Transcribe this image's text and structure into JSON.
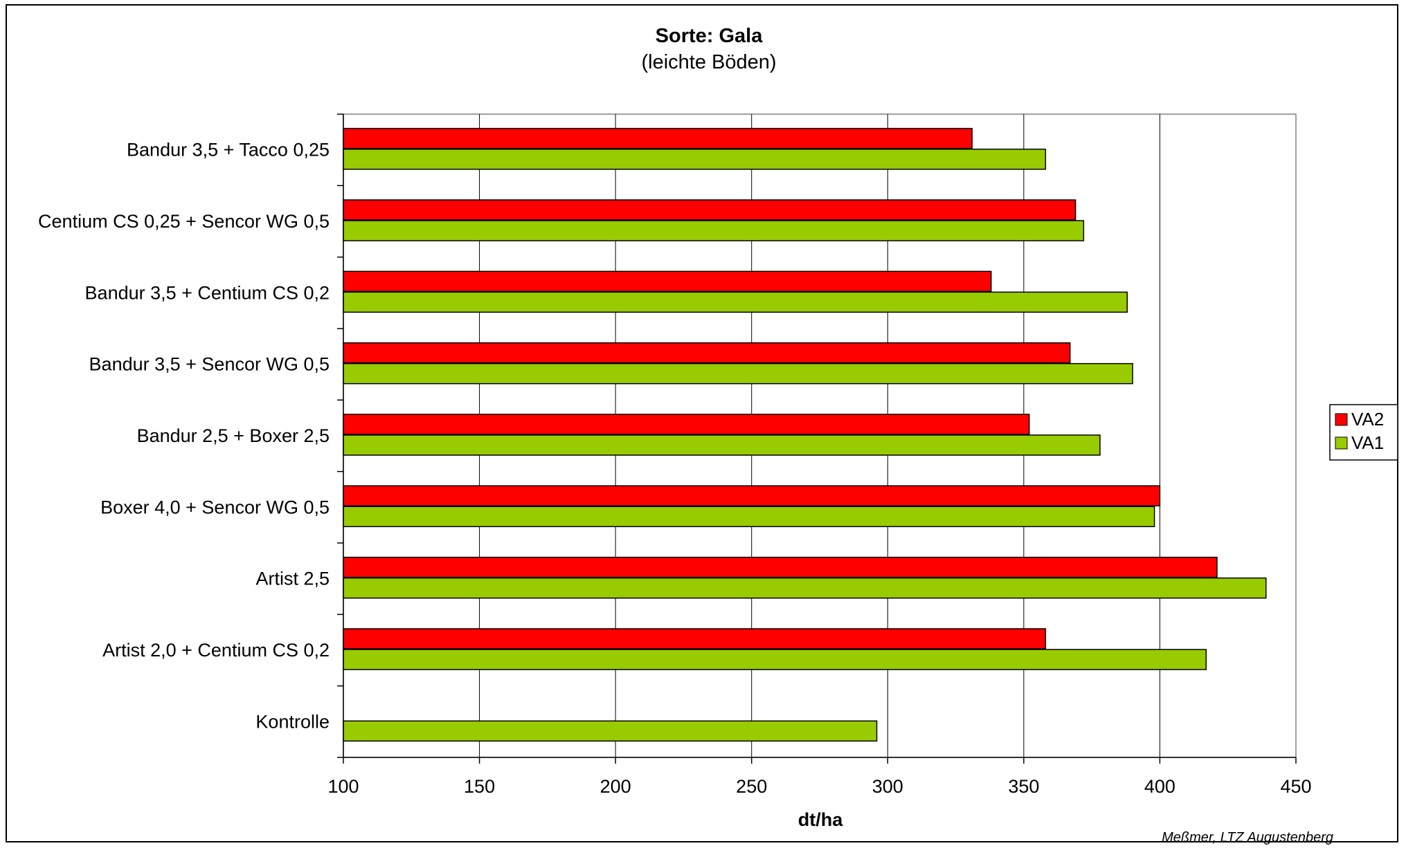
{
  "chart_data": {
    "type": "bar",
    "orientation": "horizontal",
    "title": "Sorte: Gala",
    "subtitle": "(leichte Böden)",
    "xlabel": "dt/ha",
    "ylabel": "",
    "xlim": [
      100,
      450
    ],
    "xticks": [
      100,
      150,
      200,
      250,
      300,
      350,
      400,
      450
    ],
    "grid": "vertical",
    "legend_position": "right",
    "categories": [
      "Bandur 3,5 + Tacco 0,25",
      "Centium CS 0,25 + Sencor WG 0,5",
      "Bandur 3,5 + Centium CS  0,2",
      "Bandur 3,5 + Sencor WG 0,5",
      "Bandur 2,5 + Boxer 2,5",
      "Boxer 4,0 + Sencor WG 0,5",
      "Artist 2,5",
      "Artist 2,0 + Centium CS 0,2",
      "Kontrolle"
    ],
    "series": [
      {
        "name": "VA2",
        "color": "#ff0000",
        "values": [
          331,
          369,
          338,
          367,
          352,
          400,
          421,
          358,
          null
        ]
      },
      {
        "name": "VA1",
        "color": "#99cc00",
        "values": [
          358,
          372,
          388,
          390,
          378,
          398,
          439,
          417,
          296
        ]
      }
    ],
    "credit": "Meßmer, LTZ Augustenberg"
  }
}
